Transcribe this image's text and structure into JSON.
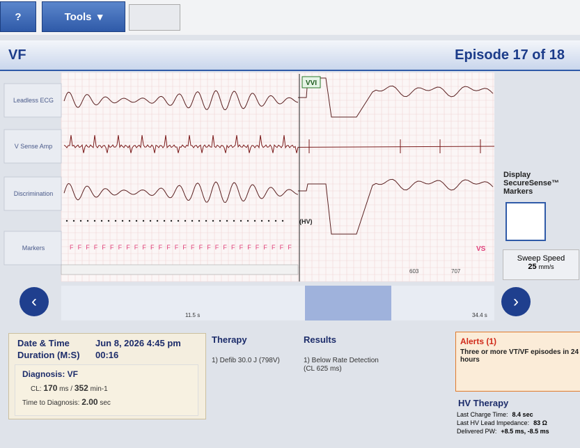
{
  "toolbar": {
    "help": "?",
    "tools": "Tools"
  },
  "header": {
    "title": "VF",
    "episode": "Episode 17 of 18"
  },
  "channels": [
    "Leadless ECG",
    "V Sense Amp",
    "Discrimination",
    "Markers"
  ],
  "annotations": {
    "mode": "VVI",
    "hv": "(HV)",
    "marker": "F",
    "vs": "VS",
    "intervals": [
      "603",
      "707"
    ]
  },
  "side_panel": {
    "display": "Display SecureSense™ Markers",
    "sweep_label": "Sweep Speed",
    "sweep_value": "25",
    "sweep_unit": "mm/s"
  },
  "timeline": {
    "start": "11.5 s",
    "end": "34.4 s"
  },
  "episode_info": {
    "date_label": "Date & Time",
    "date_value": "Jun 8, 2026 4:45 pm",
    "duration_label": "Duration (M:S)",
    "duration_value": "00:16"
  },
  "diagnosis": {
    "title": "Diagnosis: VF",
    "cl_label": "CL:",
    "cl_value": "170",
    "cl_unit": "ms /",
    "rate_value": "352",
    "rate_unit": "min-1",
    "ttd_label": "Time to Diagnosis:",
    "ttd_value": "2.00",
    "ttd_unit": "sec"
  },
  "therapy": {
    "title": "Therapy",
    "items": [
      "1) Defib 30.0 J (798V)"
    ]
  },
  "results": {
    "title": "Results",
    "items": [
      "1) Below Rate Detection",
      "(CL 625 ms)"
    ]
  },
  "alerts": {
    "title": "Alerts (1)",
    "text": "Three or more VT/VF episodes in 24 hours"
  },
  "hv_therapy": {
    "title": "HV Therapy",
    "rows": [
      {
        "label": "Last Charge Time:",
        "value": "8.4 sec"
      },
      {
        "label": "Last HV Lead Impedance:",
        "value": "83 Ω"
      },
      {
        "label": "Delivered PW:",
        "value": "+8.5 ms, -8.5 ms"
      }
    ]
  }
}
